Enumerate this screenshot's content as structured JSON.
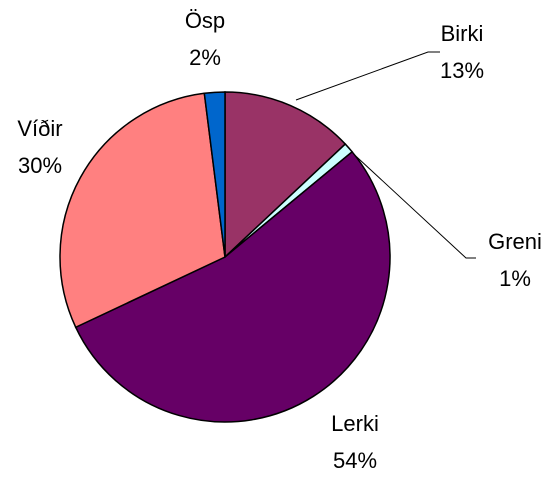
{
  "chart_data": {
    "type": "pie",
    "categories": [
      "Birki",
      "Greni",
      "Lerki",
      "Víðir",
      "Ösp"
    ],
    "values": [
      13,
      1,
      54,
      30,
      2
    ],
    "value_labels": [
      "13%",
      "1%",
      "54%",
      "30%",
      "2%"
    ],
    "colors": [
      "#993366",
      "#ccffff",
      "#660066",
      "#ff8080",
      "#0066cc"
    ]
  }
}
